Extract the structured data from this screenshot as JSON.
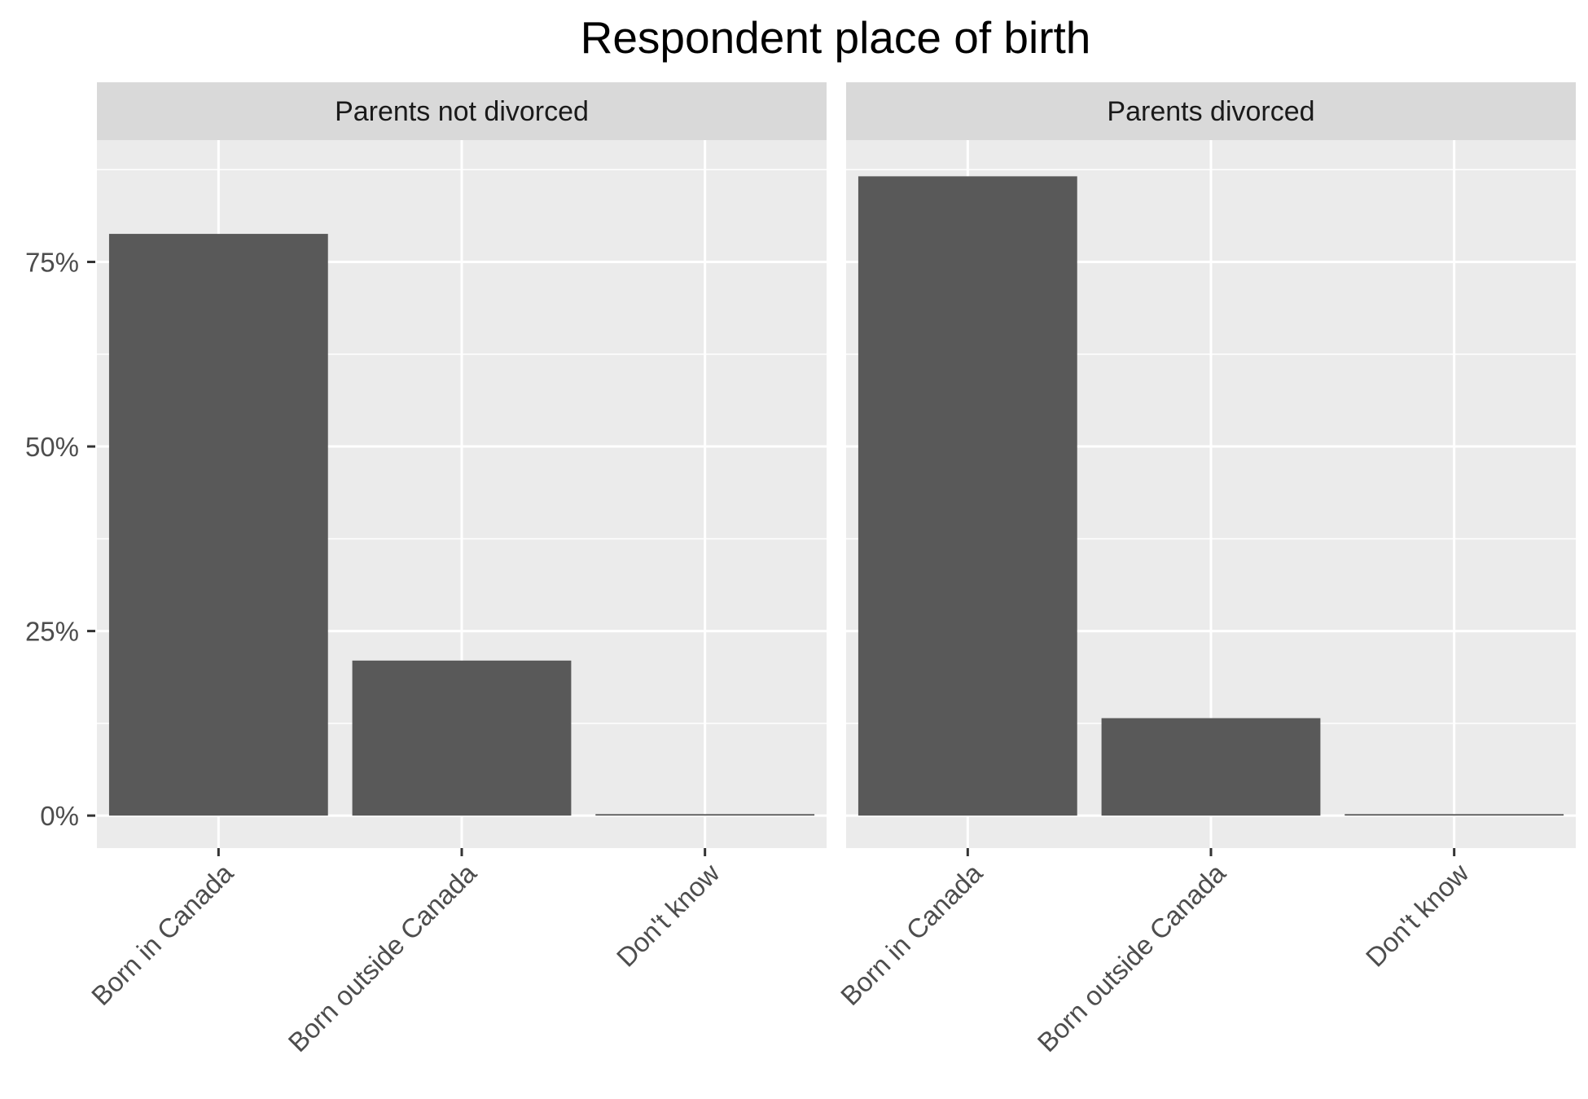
{
  "chart_data": {
    "type": "bar",
    "title": "Respondent place of birth",
    "xlabel": "",
    "ylabel": "",
    "categories": [
      "Born in Canada",
      "Born outside Canada",
      "Don't know"
    ],
    "y_tick_labels": [
      "0%",
      "25%",
      "50%",
      "75%"
    ],
    "y_ticks": [
      0,
      25,
      50,
      75
    ],
    "ylim": [
      -4.4,
      91.5
    ],
    "grid": true,
    "bar_color": "#595959",
    "panel_background": "#ebebeb",
    "strip_background": "#d9d9d9",
    "facets": [
      {
        "label": "Parents not divorced",
        "values": [
          78.8,
          21.0,
          0.2
        ]
      },
      {
        "label": "Parents divorced",
        "values": [
          86.6,
          13.2,
          0.2
        ]
      }
    ]
  }
}
